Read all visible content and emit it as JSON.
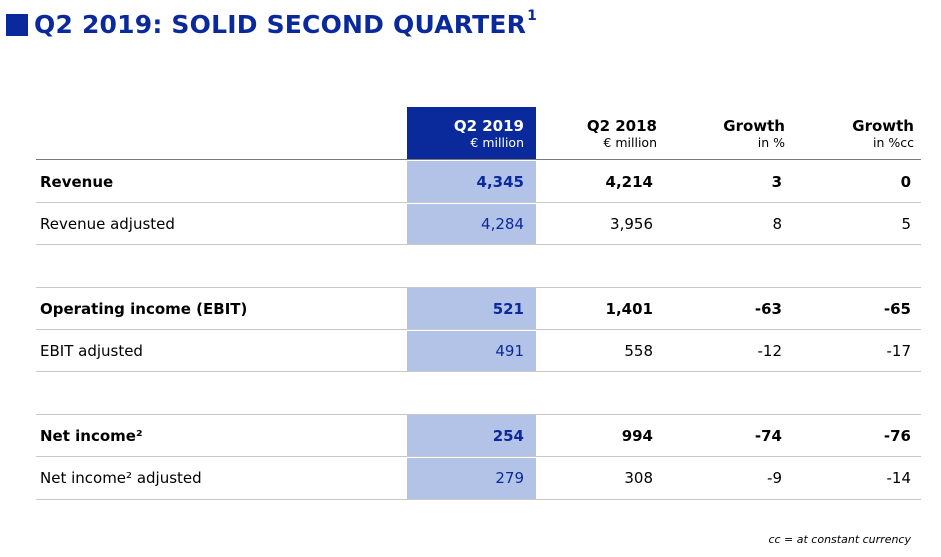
{
  "title": {
    "text": "Q2 2019: SOLID SECOND QUARTER",
    "footnote_marker": "1"
  },
  "columns": [
    {
      "label": "Q2 2019",
      "unit": "€ million"
    },
    {
      "label": "Q2 2018",
      "unit": "€ million"
    },
    {
      "label": "Growth",
      "unit": "in %"
    },
    {
      "label": "Growth",
      "unit": "in %cc"
    }
  ],
  "rows": [
    {
      "label": "Revenue",
      "values": [
        "4,345",
        "4,214",
        "3",
        "0"
      ]
    },
    {
      "label": "Revenue adjusted",
      "values": [
        "4,284",
        "3,956",
        "8",
        "5"
      ]
    },
    {
      "label": "Operating income (EBIT)",
      "values": [
        "521",
        "1,401",
        "-63",
        "-65"
      ]
    },
    {
      "label": "EBIT adjusted",
      "values": [
        "491",
        "558",
        "-12",
        "-17"
      ]
    },
    {
      "label": "Net income²",
      "values": [
        "254",
        "994",
        "-74",
        "-76"
      ]
    },
    {
      "label": "Net income² adjusted",
      "values": [
        "279",
        "308",
        "-9",
        "-14"
      ]
    }
  ],
  "footnote": "cc = at constant currency",
  "colors": {
    "brand_blue": "#0a2a9c",
    "highlight_light_blue": "#b3c3e7"
  }
}
